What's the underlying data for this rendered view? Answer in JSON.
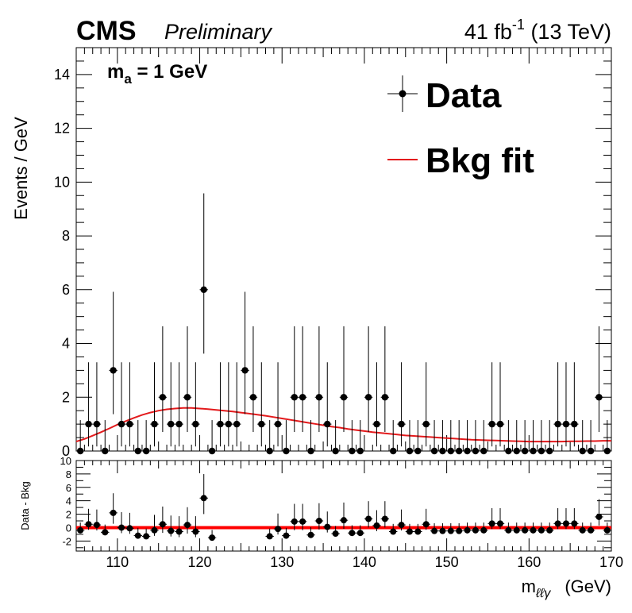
{
  "header": {
    "experiment": "CMS",
    "status": "Preliminary",
    "lumi": "41 fb",
    "lumi_sup": "-1",
    "energy": " (13 TeV)"
  },
  "annotation": {
    "text": "m",
    "sub": "a",
    "rest": " = 1 GeV"
  },
  "legend": {
    "data_label": "Data",
    "fit_label": "Bkg fit",
    "position": "top-right"
  },
  "colors": {
    "data": "#000000",
    "fit": "#e31a1c",
    "zero_line": "#ff0000"
  },
  "chart_data": [
    {
      "type": "scatter",
      "panel": "main",
      "ylabel": "Events / GeV",
      "xlim": [
        105,
        170
      ],
      "ylim": [
        0,
        15
      ],
      "x_ticks": [
        110,
        120,
        130,
        140,
        150,
        160,
        170
      ],
      "y_ticks": [
        0,
        2,
        4,
        6,
        8,
        10,
        12,
        14
      ],
      "series": [
        {
          "name": "Data",
          "x": [
            105.5,
            106.5,
            107.5,
            108.5,
            109.5,
            110.5,
            111.5,
            112.5,
            113.5,
            114.5,
            115.5,
            116.5,
            117.5,
            118.5,
            119.5,
            120.5,
            121.5,
            122.5,
            123.5,
            124.5,
            125.5,
            126.5,
            127.5,
            128.5,
            129.5,
            130.5,
            131.5,
            132.5,
            133.5,
            134.5,
            135.5,
            136.5,
            137.5,
            138.5,
            139.5,
            140.5,
            141.5,
            142.5,
            143.5,
            144.5,
            145.5,
            146.5,
            147.5,
            148.5,
            149.5,
            150.5,
            151.5,
            152.5,
            153.5,
            154.5,
            155.5,
            156.5,
            157.5,
            158.5,
            159.5,
            160.5,
            161.5,
            162.5,
            163.5,
            164.5,
            165.5,
            166.5,
            167.5,
            168.5,
            169.5
          ],
          "y": [
            0,
            1,
            1,
            0,
            3,
            1,
            1,
            0,
            0,
            1,
            2,
            1,
            1,
            2,
            1,
            6,
            0,
            1,
            1,
            1,
            3,
            2,
            1,
            0,
            1,
            0,
            2,
            2,
            0,
            2,
            1,
            0,
            2,
            0,
            0,
            2,
            1,
            2,
            0,
            1,
            0,
            0,
            1,
            0,
            0,
            0,
            0,
            0,
            0,
            0,
            1,
            1,
            0,
            0,
            0,
            0,
            0,
            0,
            1,
            1,
            1,
            0,
            0,
            2,
            0
          ],
          "y_err_up": [
            1.15,
            2.3,
            2.3,
            1.15,
            2.92,
            2.3,
            2.3,
            1.15,
            1.15,
            2.3,
            2.64,
            2.3,
            2.3,
            2.64,
            2.3,
            3.58,
            1.15,
            2.3,
            2.3,
            2.3,
            2.92,
            2.64,
            2.3,
            1.15,
            2.3,
            1.15,
            2.64,
            2.64,
            1.15,
            2.64,
            2.3,
            1.15,
            2.64,
            1.15,
            1.15,
            2.64,
            2.3,
            2.64,
            1.15,
            2.3,
            1.15,
            1.15,
            2.3,
            1.15,
            1.15,
            1.15,
            1.15,
            1.15,
            1.15,
            1.15,
            2.3,
            2.3,
            1.15,
            1.15,
            1.15,
            1.15,
            1.15,
            1.15,
            2.3,
            2.3,
            2.3,
            1.15,
            1.15,
            2.64,
            1.15
          ],
          "y_err_down": [
            0,
            0.83,
            0.83,
            0,
            1.63,
            0.83,
            0.83,
            0,
            0,
            0.83,
            1.29,
            0.83,
            0.83,
            1.29,
            0.83,
            2.38,
            0,
            0.83,
            0.83,
            0.83,
            1.63,
            1.29,
            0.83,
            0,
            0.83,
            0,
            1.29,
            1.29,
            0,
            1.29,
            0.83,
            0,
            1.29,
            0,
            0,
            1.29,
            0.83,
            1.29,
            0,
            0.83,
            0,
            0,
            0.83,
            0,
            0,
            0,
            0,
            0,
            0,
            0,
            0.83,
            0.83,
            0,
            0,
            0,
            0,
            0,
            0,
            0.83,
            0.83,
            0.83,
            0,
            0,
            1.29,
            0
          ]
        },
        {
          "name": "Bkg fit",
          "type": "line",
          "x": [
            105,
            106,
            107,
            108,
            109,
            110,
            111,
            112,
            113,
            114,
            115,
            116,
            117,
            118,
            119,
            120,
            121,
            122,
            123,
            124,
            125,
            126,
            127,
            128,
            129,
            130,
            131,
            132,
            133,
            134,
            135,
            136,
            137,
            138,
            139,
            140,
            141,
            142,
            143,
            144,
            145,
            146,
            147,
            148,
            149,
            150,
            151,
            152,
            153,
            154,
            155,
            156,
            157,
            158,
            159,
            160,
            161,
            162,
            163,
            164,
            165,
            166,
            167,
            168,
            169,
            170
          ],
          "y": [
            0.35,
            0.45,
            0.57,
            0.7,
            0.84,
            0.98,
            1.11,
            1.23,
            1.34,
            1.43,
            1.5,
            1.55,
            1.58,
            1.6,
            1.6,
            1.58,
            1.56,
            1.53,
            1.5,
            1.47,
            1.43,
            1.39,
            1.35,
            1.31,
            1.26,
            1.21,
            1.16,
            1.11,
            1.06,
            1.01,
            0.96,
            0.91,
            0.87,
            0.82,
            0.78,
            0.74,
            0.7,
            0.67,
            0.64,
            0.61,
            0.58,
            0.56,
            0.54,
            0.52,
            0.5,
            0.48,
            0.46,
            0.44,
            0.42,
            0.41,
            0.4,
            0.39,
            0.38,
            0.37,
            0.36,
            0.35,
            0.35,
            0.35,
            0.35,
            0.35,
            0.36,
            0.36,
            0.37,
            0.37,
            0.38,
            0.38
          ]
        }
      ]
    },
    {
      "type": "scatter",
      "panel": "ratio",
      "xlabel": "m",
      "xlabel_sub": "ℓℓγ",
      "xlabel_unit": "(GeV)",
      "ylabel": "Data - Bkg",
      "xlim": [
        105,
        170
      ],
      "ylim": [
        -3.5,
        10
      ],
      "x_ticks": [
        110,
        120,
        130,
        140,
        150,
        160,
        170
      ],
      "y_ticks": [
        -2,
        0,
        2,
        4,
        6,
        8,
        10
      ],
      "series": [
        {
          "name": "Data - Bkg",
          "x": [
            105.5,
            106.5,
            107.5,
            108.5,
            109.5,
            110.5,
            111.5,
            112.5,
            113.5,
            114.5,
            115.5,
            116.5,
            117.5,
            118.5,
            119.5,
            120.5,
            121.5,
            128.5,
            129.5,
            130.5,
            131.5,
            132.5,
            133.5,
            134.5,
            135.5,
            136.5,
            137.5,
            138.5,
            139.5,
            140.5,
            141.5,
            142.5,
            143.5,
            144.5,
            145.5,
            146.5,
            147.5,
            148.5,
            149.5,
            150.5,
            151.5,
            152.5,
            153.5,
            154.5,
            155.5,
            156.5,
            157.5,
            158.5,
            159.5,
            160.5,
            161.5,
            162.5,
            163.5,
            164.5,
            165.5,
            166.5,
            167.5,
            168.5,
            169.5
          ],
          "y": [
            -0.4,
            0.5,
            0.4,
            -0.7,
            2.2,
            0.0,
            -0.1,
            -1.2,
            -1.3,
            -0.4,
            0.5,
            -0.5,
            -0.6,
            0.4,
            -0.6,
            4.4,
            -1.5,
            -1.3,
            -0.2,
            -1.2,
            0.9,
            0.9,
            -1.1,
            1.0,
            0.1,
            -0.9,
            1.1,
            -0.8,
            -0.8,
            1.3,
            0.3,
            1.3,
            -0.6,
            0.4,
            -0.6,
            -0.6,
            0.5,
            -0.5,
            -0.5,
            -0.5,
            -0.5,
            -0.4,
            -0.4,
            -0.4,
            0.6,
            0.6,
            -0.4,
            -0.4,
            -0.4,
            -0.4,
            -0.4,
            -0.4,
            0.6,
            0.6,
            0.6,
            -0.4,
            -0.4,
            1.6,
            -0.4
          ],
          "y_err_up": [
            1.15,
            2.3,
            2.3,
            1.15,
            2.92,
            2.3,
            2.3,
            1.15,
            1.15,
            2.3,
            2.64,
            2.3,
            2.3,
            2.64,
            2.3,
            3.58,
            1.15,
            1.15,
            2.3,
            1.15,
            2.64,
            2.64,
            1.15,
            2.64,
            2.3,
            1.15,
            2.64,
            1.15,
            1.15,
            2.64,
            2.3,
            2.64,
            1.15,
            2.3,
            1.15,
            1.15,
            2.3,
            1.15,
            1.15,
            1.15,
            1.15,
            1.15,
            1.15,
            1.15,
            2.3,
            2.3,
            1.15,
            1.15,
            1.15,
            1.15,
            1.15,
            1.15,
            2.3,
            2.3,
            2.3,
            1.15,
            1.15,
            2.64,
            1.15
          ],
          "y_err_down": [
            0,
            0.83,
            0.83,
            0,
            1.63,
            0.83,
            0.83,
            0,
            0,
            0.83,
            1.29,
            0.83,
            0.83,
            1.29,
            0.83,
            2.38,
            0,
            0,
            0.83,
            0,
            1.29,
            1.29,
            0,
            1.29,
            0.83,
            0,
            1.29,
            0,
            0,
            1.29,
            0.83,
            1.29,
            0,
            0.83,
            0,
            0,
            0.83,
            0,
            0,
            0,
            0,
            0,
            0,
            0,
            0.83,
            0.83,
            0,
            0,
            0,
            0,
            0,
            0,
            0.83,
            0.83,
            0.83,
            0,
            0,
            1.29,
            0
          ]
        }
      ]
    }
  ]
}
